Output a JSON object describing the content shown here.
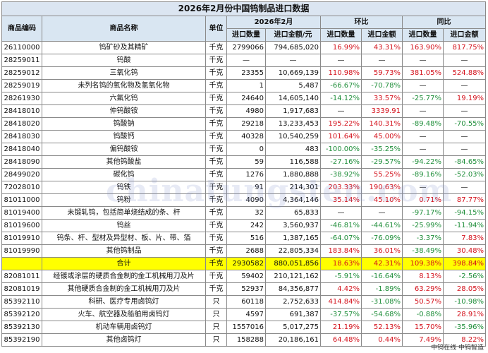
{
  "title": "2026年2月份中国钨制品进口数据",
  "headers": {
    "code": "商品编码",
    "name": "商品名称",
    "unit": "单位",
    "period": "2026年2月",
    "mom": "环比",
    "yoy": "同比",
    "qty": "进口数量",
    "amount": "进口金额/元",
    "qty_short": "进口数量",
    "amount_short": "进口金额"
  },
  "rows": [
    {
      "code": "26110000",
      "name": "钨矿砂及其精矿",
      "unit": "千克",
      "qty": "2799066",
      "amount": "794,685,020",
      "mom_q": "16.99%",
      "mom_a": "43.31%",
      "yoy_q": "163.90%",
      "yoy_a": "817.75%"
    },
    {
      "code": "28259011",
      "name": "钨酸",
      "unit": "千克",
      "qty": "—",
      "amount": "—",
      "mom_q": "—",
      "mom_a": "—",
      "yoy_q": "—",
      "yoy_a": "—"
    },
    {
      "code": "28259012",
      "name": "三氧化钨",
      "unit": "千克",
      "qty": "23355",
      "amount": "10,669,139",
      "mom_q": "110.98%",
      "mom_a": "59.73%",
      "yoy_q": "381.05%",
      "yoy_a": "524.88%"
    },
    {
      "code": "28259019",
      "name": "未列名钨的氧化物及氢氧化物",
      "unit": "千克",
      "qty": "1",
      "amount": "5,487",
      "mom_q": "-66.67%",
      "mom_a": "-70.78%",
      "yoy_q": "—",
      "yoy_a": "—"
    },
    {
      "code": "28261930",
      "name": "六氟化钨",
      "unit": "千克",
      "qty": "24640",
      "amount": "14,605,140",
      "mom_q": "-14.12%",
      "mom_a": "33.57%",
      "yoy_q": "-25.77%",
      "yoy_a": "19.19%"
    },
    {
      "code": "28418010",
      "name": "仲钨酸铵",
      "unit": "千克",
      "qty": "4980",
      "amount": "1,917,683",
      "mom_q": "—",
      "mom_a": "3339.91",
      "yoy_q": "—",
      "yoy_a": "—"
    },
    {
      "code": "28418020",
      "name": "钨酸钠",
      "unit": "千克",
      "qty": "29218",
      "amount": "13,233,453",
      "mom_q": "195.22%",
      "mom_a": "140.31%",
      "yoy_q": "-89.48%",
      "yoy_a": "-70.55%"
    },
    {
      "code": "28418030",
      "name": "钨酸钙",
      "unit": "千克",
      "qty": "40328",
      "amount": "10,540,259",
      "mom_q": "101.64%",
      "mom_a": "45.00%",
      "yoy_q": "—",
      "yoy_a": "—"
    },
    {
      "code": "28418040",
      "name": "偏钨酸铵",
      "unit": "千克",
      "qty": "0",
      "amount": "483",
      "mom_q": "-100.00%",
      "mom_a": "-35.25%",
      "yoy_q": "—",
      "yoy_a": "—"
    },
    {
      "code": "28418090",
      "name": "其他钨酸盐",
      "unit": "千克",
      "qty": "59",
      "amount": "116,588",
      "mom_q": "-27.16%",
      "mom_a": "-29.57%",
      "yoy_q": "-94.22%",
      "yoy_a": "-84.65%"
    },
    {
      "code": "28499020",
      "name": "碳化钨",
      "unit": "千克",
      "qty": "1276",
      "amount": "1,880,888",
      "mom_q": "-38.92%",
      "mom_a": "55.25%",
      "yoy_q": "-89.16%",
      "yoy_a": "-52.03%"
    },
    {
      "code": "72028010",
      "name": "钨铁",
      "unit": "千克",
      "qty": "91",
      "amount": "214,301",
      "mom_q": "203.33%",
      "mom_a": "190.63%",
      "yoy_q": "—",
      "yoy_a": "—"
    },
    {
      "code": "81011000",
      "name": "钨粉",
      "unit": "千克",
      "qty": "4090",
      "amount": "4,364,146",
      "mom_q": "35.14%",
      "mom_a": "45.10%",
      "yoy_q": "0.71%",
      "yoy_a": "87.77%"
    },
    {
      "code": "81019400",
      "name": "未锻轧钨，包括简单烧结成的条、杆",
      "unit": "千克",
      "qty": "32",
      "amount": "65,833",
      "mom_q": "—",
      "mom_a": "—",
      "yoy_q": "-97.17%",
      "yoy_a": "-94.15%"
    },
    {
      "code": "81019600",
      "name": "钨丝",
      "unit": "千克",
      "qty": "242",
      "amount": "3,560,937",
      "mom_q": "-46.81%",
      "mom_a": "-44.61%",
      "yoy_q": "-25.99%",
      "yoy_a": "-11.94%"
    },
    {
      "code": "81019910",
      "name": "钨条、杆、型材及异型材、板、片、带、箔",
      "unit": "千克",
      "qty": "516",
      "amount": "1,387,165",
      "mom_q": "-64.07%",
      "mom_a": "-76.09%",
      "yoy_q": "-3.37%",
      "yoy_a": "7.83%"
    },
    {
      "code": "81019990",
      "name": "其他钨制品",
      "unit": "千克",
      "qty": "2688",
      "amount": "22,805,334",
      "mom_q": "183.84%",
      "mom_a": "36.01%",
      "yoy_q": "-38.49%",
      "yoy_a": "30.48%"
    }
  ],
  "total": {
    "label": "合计",
    "unit": "千克",
    "qty": "2930582",
    "amount": "880,051,856",
    "mom_q": "18.63%",
    "mom_a": "42.31%",
    "yoy_q": "109.38%",
    "yoy_a": "398.84%"
  },
  "rows2": [
    {
      "code": "82081011",
      "name": "经镀或涂层的硬质合金制的金工机械用刀及片",
      "unit": "千克",
      "qty": "59402",
      "amount": "210,121,162",
      "mom_q": "-5.91%",
      "mom_a": "-16.64%",
      "yoy_q": "8.13%",
      "yoy_a": "-2.56%"
    },
    {
      "code": "82081019",
      "name": "其他硬质合金制的金工机械用刀及片",
      "unit": "千克",
      "qty": "52937",
      "amount": "84,356,877",
      "mom_q": "4.42%",
      "mom_a": "-1.89%",
      "yoy_q": "63.29%",
      "yoy_a": "28.05%"
    },
    {
      "code": "85392110",
      "name": "科研、医疗专用卤钨灯",
      "unit": "只",
      "qty": "60118",
      "amount": "2,752,633",
      "mom_q": "414.84%",
      "mom_a": "-31.08%",
      "yoy_q": "50.57%",
      "yoy_a": "-10.98%"
    },
    {
      "code": "85392120",
      "name": "火车、航空器及船舶用卤钨灯",
      "unit": "只",
      "qty": "4597",
      "amount": "691,387",
      "mom_q": "-37.57%",
      "mom_a": "-54.68%",
      "yoy_q": "-0.88%",
      "yoy_a": "28.91%"
    },
    {
      "code": "85392130",
      "name": "机动车辆用卤钨灯",
      "unit": "只",
      "qty": "1557016",
      "amount": "5,017,275",
      "mom_q": "21.19%",
      "mom_a": "52.13%",
      "yoy_q": "15.70%",
      "yoy_a": "-35.96%"
    },
    {
      "code": "85392190",
      "name": "其他卤钨灯",
      "unit": "只",
      "qty": "158288",
      "amount": "20,186,161",
      "mom_q": "64.48%",
      "mom_a": "0.44%",
      "yoy_q": "7.49%",
      "yoy_a": "8.22%"
    }
  ],
  "footer": "中钨在线 中钨智造",
  "watermark": "chinatungsten.com"
}
